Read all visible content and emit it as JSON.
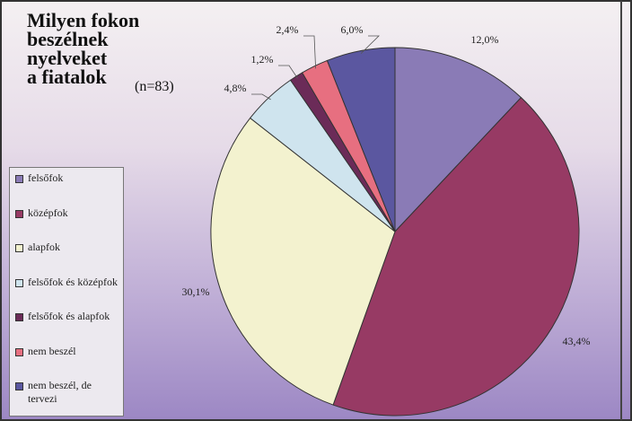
{
  "chart_data": {
    "type": "pie",
    "title": [
      "Milyen fokon",
      "beszélnek",
      "nyelveket",
      "a fiatalok"
    ],
    "subtitle": "(n=83)",
    "categories": [
      "felsőfok",
      "középfok",
      "alapfok",
      "felsőfok és középfok",
      "felsőfok és alapfok",
      "nem beszél",
      "nem beszél, de tervezi"
    ],
    "values": [
      12.0,
      43.4,
      30.1,
      4.8,
      1.2,
      2.4,
      6.0
    ],
    "value_labels": [
      "12,0%",
      "43,4%",
      "30,1%",
      "4,8%",
      "1,2%",
      "2,4%",
      "6,0%"
    ],
    "colors": [
      "#8a7bb6",
      "#973a64",
      "#f3f2cf",
      "#cfe4ee",
      "#6b2b58",
      "#e76f80",
      "#5b57a0"
    ],
    "legend": "left"
  }
}
